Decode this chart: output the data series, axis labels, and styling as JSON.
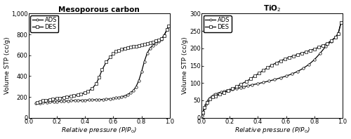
{
  "left_title": "Mesoporous carbon",
  "right_title": "TiO$_2$",
  "xlabel": "Relative pressure ($P/P_0$)",
  "ylabel": "Volume STP (cc/g)",
  "left_ylim": [
    0,
    1000
  ],
  "left_yticks": [
    0,
    200,
    400,
    600,
    800,
    1000
  ],
  "right_ylim": [
    0,
    300
  ],
  "right_yticks": [
    0,
    50,
    100,
    150,
    200,
    250,
    300
  ],
  "xlim": [
    0,
    1.0
  ],
  "xticks": [
    0,
    0.2,
    0.4,
    0.6,
    0.8,
    1.0
  ],
  "left_ads_x": [
    0.05,
    0.08,
    0.1,
    0.13,
    0.15,
    0.18,
    0.2,
    0.23,
    0.25,
    0.28,
    0.3,
    0.33,
    0.35,
    0.38,
    0.4,
    0.43,
    0.45,
    0.48,
    0.5,
    0.53,
    0.55,
    0.58,
    0.6,
    0.62,
    0.64,
    0.66,
    0.68,
    0.7,
    0.72,
    0.74,
    0.76,
    0.78,
    0.8,
    0.82,
    0.84,
    0.86,
    0.88,
    0.9,
    0.92,
    0.94,
    0.96,
    0.98,
    0.99
  ],
  "left_ads_y": [
    138,
    142,
    145,
    148,
    150,
    153,
    155,
    157,
    159,
    161,
    163,
    165,
    166,
    167,
    169,
    170,
    171,
    173,
    174,
    176,
    178,
    181,
    185,
    190,
    195,
    202,
    210,
    222,
    238,
    260,
    295,
    355,
    440,
    540,
    620,
    668,
    695,
    715,
    730,
    750,
    790,
    845,
    880
  ],
  "left_des_x": [
    0.99,
    0.98,
    0.96,
    0.94,
    0.92,
    0.9,
    0.88,
    0.86,
    0.84,
    0.82,
    0.8,
    0.78,
    0.76,
    0.74,
    0.72,
    0.7,
    0.68,
    0.66,
    0.64,
    0.62,
    0.6,
    0.58,
    0.55,
    0.52,
    0.5,
    0.48,
    0.45,
    0.42,
    0.4,
    0.37,
    0.35,
    0.32,
    0.3,
    0.27,
    0.25,
    0.22,
    0.2,
    0.17,
    0.15,
    0.12,
    0.1,
    0.08,
    0.06
  ],
  "left_des_y": [
    880,
    845,
    790,
    760,
    748,
    738,
    728,
    720,
    713,
    707,
    700,
    694,
    688,
    683,
    678,
    672,
    666,
    658,
    648,
    635,
    615,
    585,
    535,
    460,
    390,
    330,
    280,
    255,
    240,
    228,
    220,
    212,
    206,
    200,
    195,
    189,
    184,
    178,
    173,
    168,
    163,
    156,
    148
  ],
  "right_ads_x": [
    0.005,
    0.01,
    0.02,
    0.03,
    0.04,
    0.05,
    0.06,
    0.07,
    0.08,
    0.09,
    0.1,
    0.12,
    0.14,
    0.16,
    0.18,
    0.2,
    0.22,
    0.25,
    0.28,
    0.3,
    0.33,
    0.36,
    0.4,
    0.44,
    0.48,
    0.52,
    0.56,
    0.6,
    0.64,
    0.68,
    0.72,
    0.76,
    0.8,
    0.84,
    0.88,
    0.92,
    0.95,
    0.97,
    0.99
  ],
  "right_ads_y": [
    5,
    12,
    28,
    38,
    46,
    52,
    56,
    60,
    63,
    66,
    68,
    71,
    74,
    76,
    78,
    80,
    82,
    84,
    87,
    89,
    92,
    95,
    98,
    102,
    106,
    110,
    115,
    120,
    126,
    133,
    142,
    153,
    167,
    185,
    205,
    220,
    232,
    243,
    275
  ],
  "right_des_x": [
    0.99,
    0.97,
    0.95,
    0.92,
    0.89,
    0.86,
    0.83,
    0.8,
    0.77,
    0.74,
    0.71,
    0.68,
    0.65,
    0.62,
    0.59,
    0.56,
    0.53,
    0.5,
    0.47,
    0.44,
    0.41,
    0.38,
    0.35,
    0.32,
    0.28,
    0.25,
    0.22,
    0.19,
    0.16,
    0.13,
    0.1,
    0.08,
    0.06,
    0.04,
    0.02,
    0.01
  ],
  "right_des_y": [
    275,
    243,
    232,
    222,
    214,
    208,
    203,
    198,
    194,
    190,
    186,
    182,
    178,
    174,
    169,
    164,
    158,
    152,
    145,
    137,
    129,
    121,
    113,
    105,
    97,
    90,
    84,
    78,
    73,
    68,
    63,
    59,
    53,
    44,
    30,
    15
  ],
  "line_color": "#000000",
  "marker_ads": "o",
  "marker_des": "s",
  "marker_size": 2.5,
  "linewidth": 0.9,
  "title_fontsize": 7.5,
  "label_fontsize": 6.5,
  "tick_fontsize": 6,
  "legend_fontsize": 6,
  "background_color": "#ffffff"
}
